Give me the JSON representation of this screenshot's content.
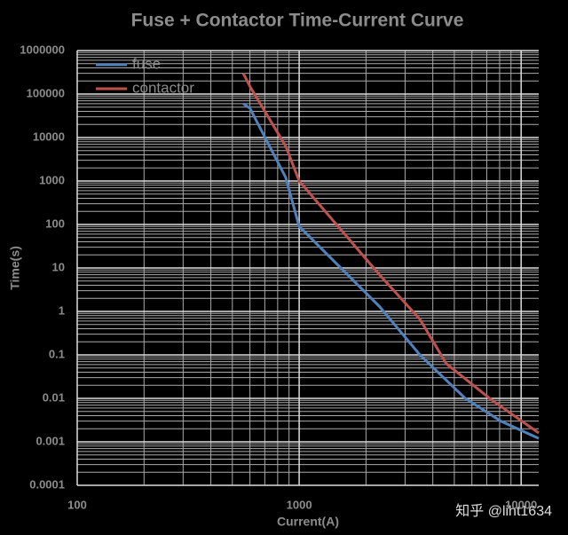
{
  "chart_data": {
    "type": "line",
    "title": "Fuse + Contactor   Time-Current Curve",
    "x_label": "Current(A)",
    "y_label": "Time(s)",
    "xscale": "log",
    "yscale": "log",
    "grid": true,
    "minor_grid": true,
    "legend": "upper left",
    "xlim": [
      100,
      12000
    ],
    "xticks": [
      100,
      1000,
      10000
    ],
    "ylim": [
      0.0001,
      1000000
    ],
    "yticks": [
      1000000,
      100000,
      10000,
      1000,
      100,
      10,
      1,
      0.1,
      0.01,
      0.001,
      0.0001
    ],
    "series": [
      {
        "name": "fuse",
        "color": "#4f81bd",
        "x": [
          560,
          600,
          870,
          1000,
          2300,
          3500,
          5600,
          8100,
          12000
        ],
        "values": [
          60000,
          47000,
          1200,
          90,
          1.3,
          0.1,
          0.01,
          0.003,
          0.0012
        ]
      },
      {
        "name": "contactor",
        "color": "#c0504d",
        "x": [
          560,
          600,
          870,
          1000,
          2300,
          3500,
          4600,
          7300,
          12000
        ],
        "values": [
          300000,
          150000,
          6300,
          1000,
          7,
          0.66,
          0.063,
          0.0095,
          0.0016
        ]
      }
    ],
    "watermark": "知乎 @liht1634"
  }
}
